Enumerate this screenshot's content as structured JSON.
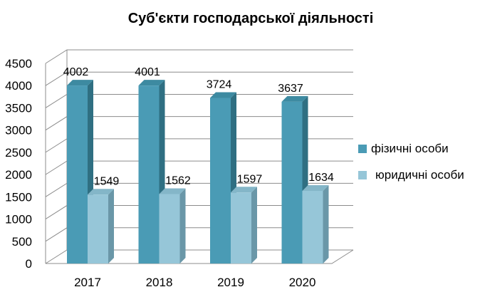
{
  "chart_data": {
    "type": "bar",
    "title": "Суб'єкти господарської діяльності",
    "categories": [
      "2017",
      "2018",
      "2019",
      "2020"
    ],
    "series": [
      {
        "name": "фізичні особи",
        "values": [
          4002,
          4001,
          3724,
          3637
        ],
        "color": "#4a9bb5",
        "side_color": "#2f6f82",
        "top_color": "#3d8aa1"
      },
      {
        "name": "юридичні особи",
        "values": [
          1549,
          1562,
          1597,
          1634
        ],
        "color": "#96c6d8",
        "side_color": "#6a97a8",
        "top_color": "#84b6c8"
      }
    ],
    "ylim": [
      0,
      4500
    ],
    "yticks": [
      0,
      500,
      1000,
      1500,
      2000,
      2500,
      3000,
      3500,
      4000,
      4500
    ],
    "grid": true,
    "legend_position": "right",
    "data_labels": true,
    "style": "3d-clustered-column"
  }
}
